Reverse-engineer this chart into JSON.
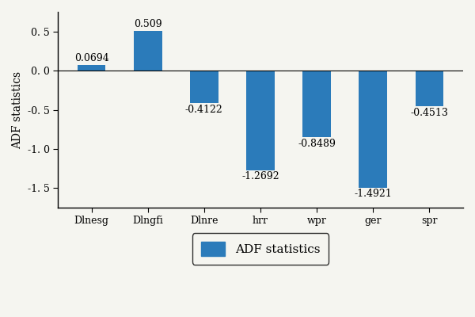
{
  "categories": [
    "Dlnesg",
    "Dlngfi",
    "Dlnre",
    "hrr",
    "wpr",
    "ger",
    "spr"
  ],
  "values": [
    0.0694,
    0.509,
    -0.4122,
    -1.2692,
    -0.8489,
    -1.4921,
    -0.4513
  ],
  "bar_color": "#2b7bba",
  "title": "",
  "ylabel": "ADF statistics",
  "ylim": [
    -1.75,
    0.75
  ],
  "yticks": [
    -1.5,
    -1.0,
    -0.5,
    0.0,
    0.5
  ],
  "ytick_labels": [
    "-1. 5",
    "-1. 0",
    "-0. 5",
    "0. 0",
    "0. 5"
  ],
  "legend_label": "ADF statistics",
  "background_color": "#f5f5f0",
  "label_fontsize": 9,
  "axis_fontsize": 9,
  "bar_width": 0.5
}
